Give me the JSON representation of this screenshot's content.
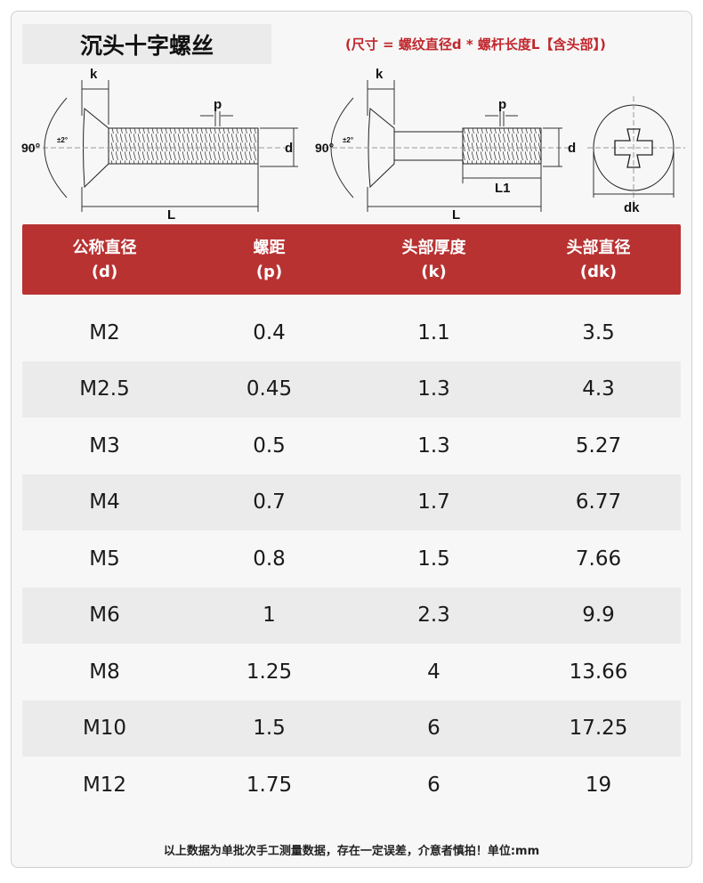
{
  "title": "沉头十字螺丝",
  "note": "(尺寸 = 螺纹直径d * 螺杆长度L【含头部】)",
  "diagram_labels": {
    "k": "k",
    "p": "p",
    "d": "d",
    "L": "L",
    "L1": "L1",
    "dk": "dk",
    "angle": "90°",
    "tolerance": "±2°"
  },
  "table": {
    "headers": [
      {
        "name": "公称直径",
        "symbol": "(d)"
      },
      {
        "name": "螺距",
        "symbol": "(p)"
      },
      {
        "name": "头部厚度",
        "symbol": "(k)"
      },
      {
        "name": "头部直径",
        "symbol": "(dk)"
      }
    ],
    "rows": [
      [
        "M2",
        "0.4",
        "1.1",
        "3.5"
      ],
      [
        "M2.5",
        "0.45",
        "1.3",
        "4.3"
      ],
      [
        "M3",
        "0.5",
        "1.3",
        "5.27"
      ],
      [
        "M4",
        "0.7",
        "1.7",
        "6.77"
      ],
      [
        "M5",
        "0.8",
        "1.5",
        "7.66"
      ],
      [
        "M6",
        "1",
        "2.3",
        "9.9"
      ],
      [
        "M8",
        "1.25",
        "4",
        "13.66"
      ],
      [
        "M10",
        "1.5",
        "6",
        "17.25"
      ],
      [
        "M12",
        "1.75",
        "6",
        "19"
      ]
    ]
  },
  "footer": "以上数据为单批次手工测量数据，存在一定误差，介意者慎拍！单位:mm",
  "colors": {
    "header_bg": "#b83232",
    "note": "#c0272d"
  }
}
